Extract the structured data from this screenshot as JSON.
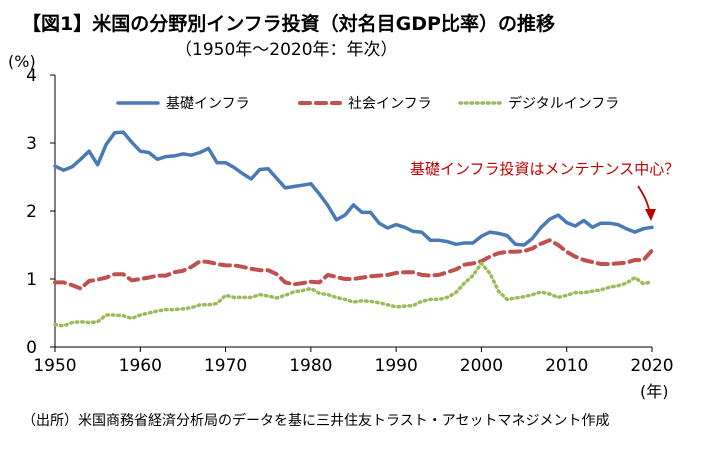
{
  "chart_data": {
    "type": "line",
    "title": "【図1】米国の分野別インフラ投資（対名目GDP比率）の推移",
    "subtitle": "（1950年～2020年：年次）",
    "ylabel": "(%)",
    "xlabel": "(年)",
    "xlim": [
      1950,
      2020
    ],
    "ylim": [
      0,
      4
    ],
    "x_ticks": [
      "1950",
      "1960",
      "1970",
      "1980",
      "1990",
      "2000",
      "2010",
      "2020"
    ],
    "y_ticks": [
      "0",
      "1",
      "2",
      "3",
      "4"
    ],
    "grid": false,
    "legend_position": "top",
    "annotation": "基礎インフラ投資はメンテナンス中心？",
    "source": "（出所）米国商務省経済分析局のデータを基に三井住友トラスト・アセットマネジメント作成",
    "x": [
      1950,
      1951,
      1952,
      1953,
      1954,
      1955,
      1956,
      1957,
      1958,
      1959,
      1960,
      1961,
      1962,
      1963,
      1964,
      1965,
      1966,
      1967,
      1968,
      1969,
      1970,
      1971,
      1972,
      1973,
      1974,
      1975,
      1976,
      1977,
      1978,
      1979,
      1980,
      1981,
      1982,
      1983,
      1984,
      1985,
      1986,
      1987,
      1988,
      1989,
      1990,
      1991,
      1992,
      1993,
      1994,
      1995,
      1996,
      1997,
      1998,
      1999,
      2000,
      2001,
      2002,
      2003,
      2004,
      2005,
      2006,
      2007,
      2008,
      2009,
      2010,
      2011,
      2012,
      2013,
      2014,
      2015,
      2016,
      2017,
      2018,
      2019,
      2020
    ],
    "series": [
      {
        "name": "基礎インフラ",
        "color": "#4a7ab5",
        "style": "solid",
        "values": [
          2.66,
          2.6,
          2.65,
          2.76,
          2.88,
          2.68,
          2.98,
          3.15,
          3.16,
          3.01,
          2.88,
          2.86,
          2.76,
          2.8,
          2.81,
          2.84,
          2.82,
          2.86,
          2.92,
          2.71,
          2.71,
          2.64,
          2.55,
          2.47,
          2.61,
          2.62,
          2.48,
          2.34,
          2.36,
          2.38,
          2.4,
          2.25,
          2.08,
          1.87,
          1.94,
          2.09,
          1.98,
          1.98,
          1.82,
          1.75,
          1.8,
          1.76,
          1.7,
          1.69,
          1.57,
          1.57,
          1.55,
          1.51,
          1.53,
          1.53,
          1.63,
          1.69,
          1.67,
          1.64,
          1.51,
          1.5,
          1.6,
          1.76,
          1.88,
          1.94,
          1.83,
          1.78,
          1.86,
          1.76,
          1.82,
          1.82,
          1.8,
          1.74,
          1.69,
          1.74,
          1.76
        ]
      },
      {
        "name": "社会インフラ",
        "color": "#c0504d",
        "style": "dashed",
        "values": [
          0.95,
          0.95,
          0.91,
          0.86,
          0.97,
          0.99,
          1.02,
          1.07,
          1.07,
          0.98,
          1.0,
          1.02,
          1.05,
          1.05,
          1.1,
          1.12,
          1.18,
          1.26,
          1.25,
          1.22,
          1.2,
          1.2,
          1.18,
          1.15,
          1.13,
          1.13,
          1.07,
          0.95,
          0.92,
          0.94,
          0.96,
          0.95,
          1.06,
          1.03,
          1.0,
          1.0,
          1.02,
          1.04,
          1.05,
          1.06,
          1.09,
          1.1,
          1.1,
          1.06,
          1.05,
          1.06,
          1.1,
          1.14,
          1.21,
          1.23,
          1.26,
          1.33,
          1.38,
          1.4,
          1.4,
          1.41,
          1.45,
          1.52,
          1.57,
          1.5,
          1.4,
          1.33,
          1.28,
          1.25,
          1.22,
          1.22,
          1.23,
          1.24,
          1.28,
          1.28,
          1.42
        ]
      },
      {
        "name": "デジタルインフラ",
        "color": "#9bbb59",
        "style": "dotted",
        "values": [
          0.33,
          0.31,
          0.36,
          0.37,
          0.36,
          0.37,
          0.47,
          0.47,
          0.46,
          0.42,
          0.47,
          0.5,
          0.53,
          0.55,
          0.55,
          0.56,
          0.58,
          0.62,
          0.62,
          0.64,
          0.76,
          0.73,
          0.73,
          0.73,
          0.77,
          0.75,
          0.72,
          0.76,
          0.81,
          0.83,
          0.86,
          0.79,
          0.77,
          0.73,
          0.7,
          0.66,
          0.68,
          0.67,
          0.65,
          0.62,
          0.59,
          0.6,
          0.61,
          0.67,
          0.7,
          0.7,
          0.73,
          0.8,
          0.94,
          1.05,
          1.23,
          1.08,
          0.82,
          0.7,
          0.72,
          0.74,
          0.77,
          0.81,
          0.78,
          0.73,
          0.76,
          0.8,
          0.8,
          0.82,
          0.84,
          0.88,
          0.9,
          0.94,
          1.02,
          0.93,
          0.96
        ]
      }
    ]
  }
}
